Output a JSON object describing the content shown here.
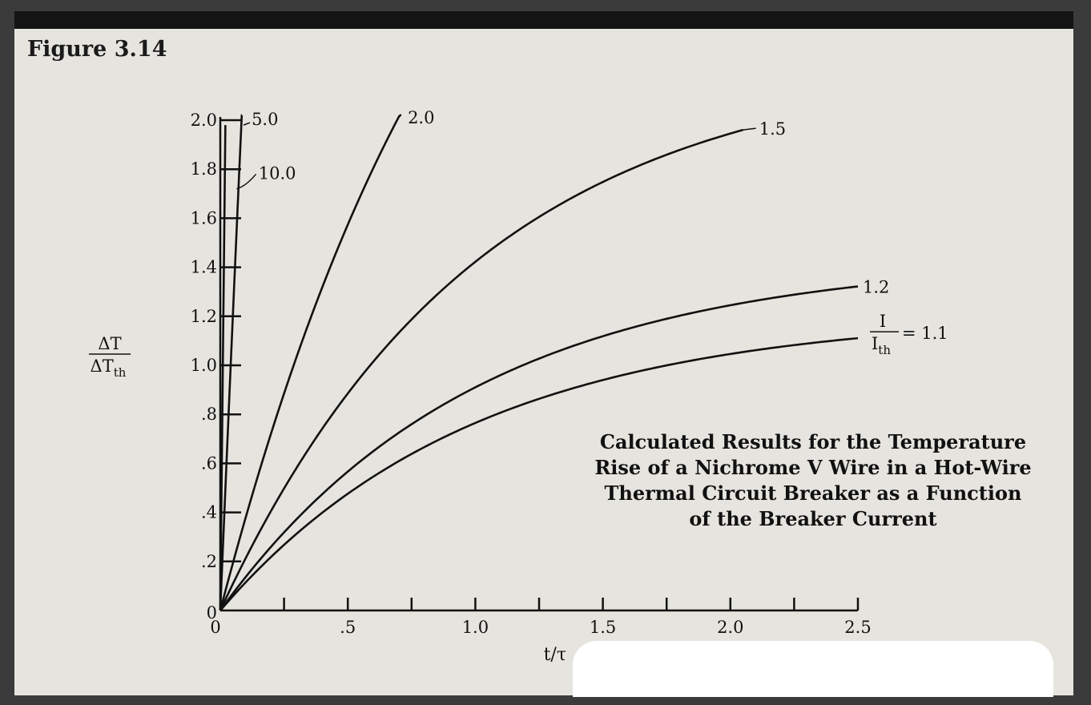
{
  "figure_label": "Figure 3.14",
  "chart_data": {
    "type": "line",
    "title": "Calculated Results for the Temperature Rise of a Nichrome V Wire in a Hot-Wire Thermal Circuit Breaker as a Function of the Breaker Current",
    "title_lines": [
      "Calculated Results for the Temperature",
      "Rise of a Nichrome V Wire in a Hot-Wire",
      "Thermal Circuit Breaker as a Function",
      "of the Breaker Current"
    ],
    "xlabel": "t/τ",
    "ylabel_num": "ΔT",
    "ylabel_den": "ΔT",
    "ylabel_den_sub": "th",
    "xlim": [
      0,
      2.5
    ],
    "ylim": [
      0,
      2.0
    ],
    "x_ticks": [
      0,
      0.25,
      0.5,
      0.75,
      1.0,
      1.25,
      1.5,
      1.75,
      2.0,
      2.25,
      2.5
    ],
    "x_tick_labels": [
      {
        "x": 0,
        "label": "0"
      },
      {
        "x": 0.5,
        "label": ".5"
      },
      {
        "x": 1.0,
        "label": "1.0"
      },
      {
        "x": 1.5,
        "label": "1.5"
      },
      {
        "x": 2.0,
        "label": "2.0"
      },
      {
        "x": 2.5,
        "label": "2.5"
      }
    ],
    "y_ticks": [
      0,
      0.2,
      0.4,
      0.6,
      0.8,
      1.0,
      1.2,
      1.4,
      1.6,
      1.8,
      2.0
    ],
    "y_tick_labels": [
      "0",
      ".2",
      ".4",
      ".6",
      ".8",
      "1.0",
      "1.2",
      "1.4",
      "1.6",
      "1.8",
      "2.0"
    ],
    "legend_ratio_num": "I",
    "legend_ratio_den": "I",
    "legend_ratio_den_sub": "th",
    "legend_ratio_suffix": "= 1.1",
    "series": [
      {
        "name": "1.1",
        "I_ratio": 1.1,
        "x_end": 2.5
      },
      {
        "name": "1.2",
        "I_ratio": 1.2,
        "x_end": 2.5
      },
      {
        "name": "1.5",
        "I_ratio": 1.5,
        "x_end": 2.05
      },
      {
        "name": "2.0",
        "I_ratio": 2.0,
        "x_end": 0.71
      },
      {
        "name": "5.0",
        "I_ratio": 5.0,
        "x_end": 0.085
      },
      {
        "name": "10.0",
        "I_ratio": 10.0,
        "x_end": 0.02
      }
    ]
  }
}
